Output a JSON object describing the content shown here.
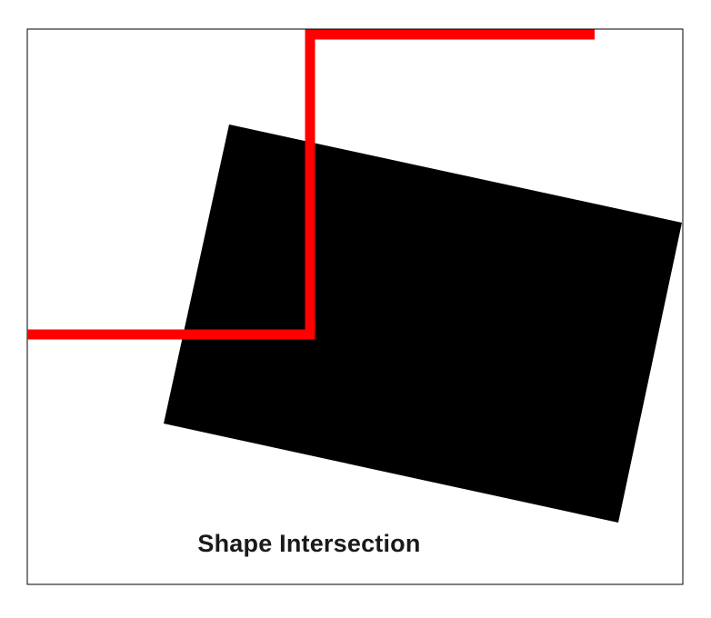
{
  "caption": "Shape Intersection",
  "colors": {
    "background": "#ffffff",
    "border": "#000000",
    "shape": "#000000",
    "line": "#ff0000"
  }
}
